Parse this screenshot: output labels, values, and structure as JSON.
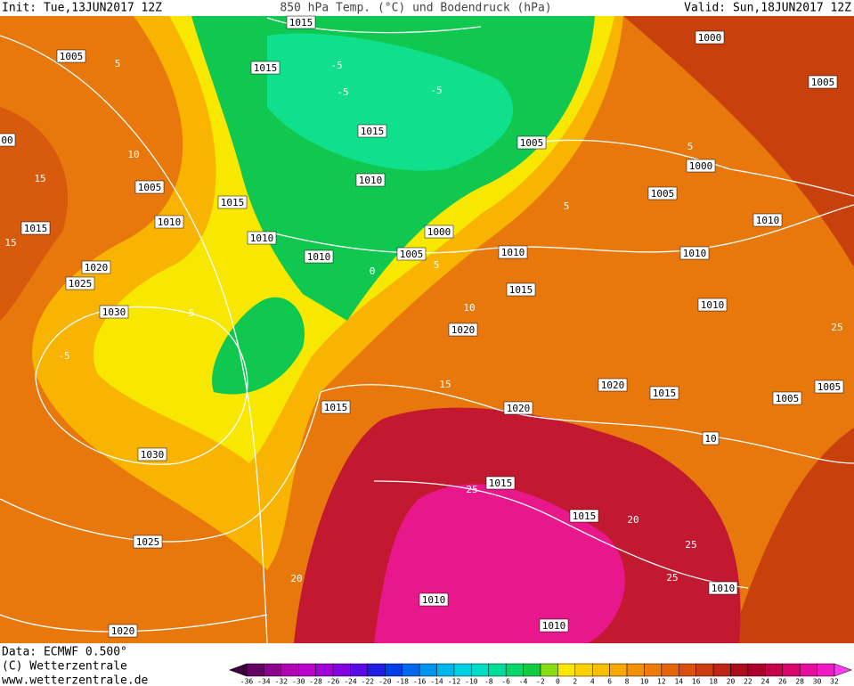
{
  "header": {
    "init": "Init: Tue,13JUN2017 12Z",
    "title": "850 hPa Temp. (°C) und Bodendruck (hPa)",
    "valid": "Valid: Sun,18JUN2017 12Z"
  },
  "isobar_labels": [
    "1015",
    "1005",
    "1015",
    "1000",
    "1005",
    "1015",
    "1005",
    "1000",
    "00",
    "1010",
    "1005",
    "1005",
    "1015",
    "1010",
    "1010",
    "1015",
    "1010",
    "1000",
    "1010",
    "1005",
    "1010",
    "1010",
    "1020",
    "1025",
    "1015",
    "1010",
    "1030",
    "1020",
    "1020",
    "1015",
    "1005",
    "1005",
    "1015",
    "1020",
    "10",
    "1030",
    "1015",
    "1015",
    "1025",
    "1010",
    "1010",
    "1010",
    "1020"
  ],
  "isotherm_labels": [
    "5",
    "-5",
    "10",
    "15",
    "15",
    "-5",
    "-5",
    "5",
    "0",
    "10",
    "5",
    "5",
    "15",
    "25",
    "25",
    "20",
    "25",
    "20",
    "25",
    "-5",
    "5"
  ],
  "footer": {
    "data": "Data: ECMWF  0.500°",
    "copyright": "(C) Wetterzentrale",
    "url": "www.wetterzentrale.de"
  },
  "colorbar": {
    "ticks": [
      -36,
      -34,
      -32,
      -30,
      -28,
      -26,
      -24,
      -22,
      -20,
      -18,
      -16,
      -14,
      -12,
      -10,
      -8,
      -6,
      -4,
      -2,
      0,
      2,
      4,
      6,
      8,
      10,
      12,
      14,
      16,
      18,
      20,
      22,
      24,
      26,
      28,
      30,
      32
    ]
  }
}
